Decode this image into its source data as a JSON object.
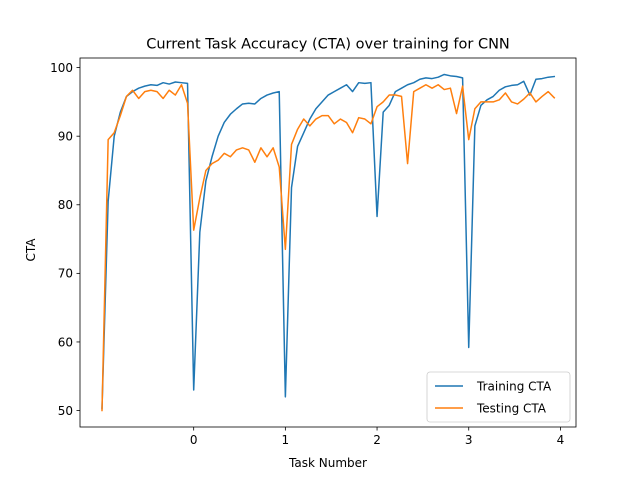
{
  "chart_data": {
    "type": "line",
    "title": "Current Task Accuracy (CTA) over training for CNN",
    "xlabel": "Task Number",
    "ylabel": "CTA",
    "xlim": [
      -1.24,
      4.17
    ],
    "ylim": [
      47.6,
      101.4
    ],
    "x_ticks": [
      0,
      1,
      2,
      3,
      4
    ],
    "y_ticks": [
      50,
      60,
      70,
      80,
      90,
      100
    ],
    "grid": false,
    "legend_position": "lower-right",
    "x": [
      -1.0,
      -0.933,
      -0.867,
      -0.8,
      -0.733,
      -0.667,
      -0.6,
      -0.533,
      -0.467,
      -0.4,
      -0.333,
      -0.267,
      -0.2,
      -0.133,
      -0.067,
      0.0,
      0.067,
      0.133,
      0.2,
      0.267,
      0.333,
      0.4,
      0.467,
      0.533,
      0.6,
      0.667,
      0.733,
      0.8,
      0.867,
      0.933,
      1.0,
      1.067,
      1.133,
      1.2,
      1.267,
      1.333,
      1.4,
      1.467,
      1.533,
      1.6,
      1.667,
      1.733,
      1.8,
      1.867,
      1.933,
      2.0,
      2.067,
      2.133,
      2.2,
      2.267,
      2.333,
      2.4,
      2.467,
      2.533,
      2.6,
      2.667,
      2.733,
      2.8,
      2.867,
      2.933,
      3.0,
      3.067,
      3.133,
      3.2,
      3.267,
      3.333,
      3.4,
      3.467,
      3.533,
      3.6,
      3.667,
      3.733,
      3.8,
      3.867,
      3.933
    ],
    "series": [
      {
        "name": "Training CTA",
        "color": "#1f77b4",
        "values": [
          50.3,
          80.5,
          90.0,
          93.5,
          95.8,
          96.5,
          97.0,
          97.3,
          97.5,
          97.4,
          97.8,
          97.6,
          97.9,
          97.8,
          97.7,
          53.0,
          76.0,
          83.5,
          87.0,
          90.0,
          92.0,
          93.2,
          94.0,
          94.7,
          94.8,
          94.7,
          95.5,
          96.0,
          96.3,
          96.5,
          52.0,
          82.5,
          88.5,
          90.5,
          92.5,
          94.0,
          95.0,
          96.0,
          96.5,
          97.0,
          97.5,
          96.5,
          97.8,
          97.7,
          97.8,
          78.3,
          93.5,
          94.5,
          96.5,
          97.0,
          97.5,
          97.8,
          98.3,
          98.5,
          98.4,
          98.6,
          99.0,
          98.8,
          98.7,
          98.5,
          59.2,
          91.5,
          94.5,
          95.3,
          95.8,
          96.7,
          97.2,
          97.4,
          97.5,
          98.0,
          96.0,
          98.3,
          98.4,
          98.6,
          98.7
        ]
      },
      {
        "name": "Testing CTA",
        "color": "#ff7f0e",
        "values": [
          50.0,
          89.5,
          90.5,
          93.0,
          95.8,
          96.7,
          95.5,
          96.5,
          96.7,
          96.5,
          95.5,
          96.7,
          96.0,
          97.5,
          94.8,
          76.3,
          81.0,
          85.0,
          86.0,
          86.5,
          87.5,
          87.0,
          88.0,
          88.3,
          88.0,
          86.2,
          88.3,
          87.0,
          88.3,
          85.5,
          73.5,
          88.8,
          91.0,
          92.5,
          91.5,
          92.5,
          93.0,
          93.0,
          91.8,
          92.5,
          92.0,
          90.5,
          92.7,
          92.5,
          91.8,
          94.3,
          95.0,
          96.0,
          96.0,
          95.8,
          86.0,
          96.5,
          97.0,
          97.5,
          97.0,
          97.5,
          96.8,
          97.0,
          93.3,
          97.3,
          89.5,
          94.0,
          95.0,
          95.0,
          95.0,
          95.3,
          96.3,
          95.0,
          94.7,
          95.4,
          96.3,
          95.0,
          95.8,
          96.5,
          95.6
        ]
      }
    ]
  }
}
